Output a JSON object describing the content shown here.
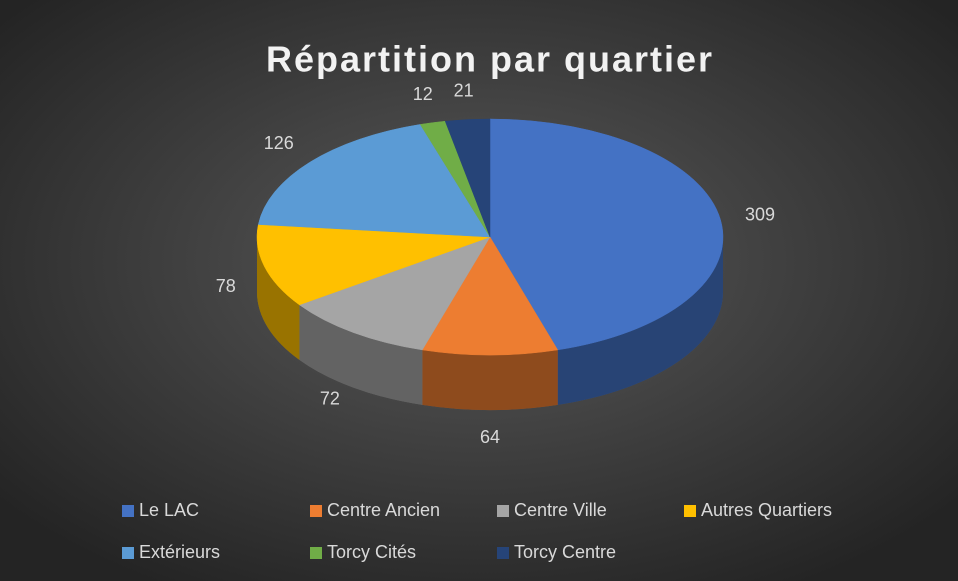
{
  "chart_data": {
    "type": "pie",
    "title": "Répartition par quartier",
    "categories": [
      "Le LAC",
      "Centre Ancien",
      "Centre Ville",
      "Autres Quartiers",
      "Extérieurs",
      "Torcy Cités",
      "Torcy Centre"
    ],
    "values": [
      309,
      64,
      72,
      78,
      126,
      12,
      21
    ],
    "colors": [
      "#4472c4",
      "#ed7d31",
      "#a5a5a5",
      "#ffc000",
      "#5b9bd5",
      "#70ad47",
      "#264478"
    ],
    "legend": "bottom"
  }
}
